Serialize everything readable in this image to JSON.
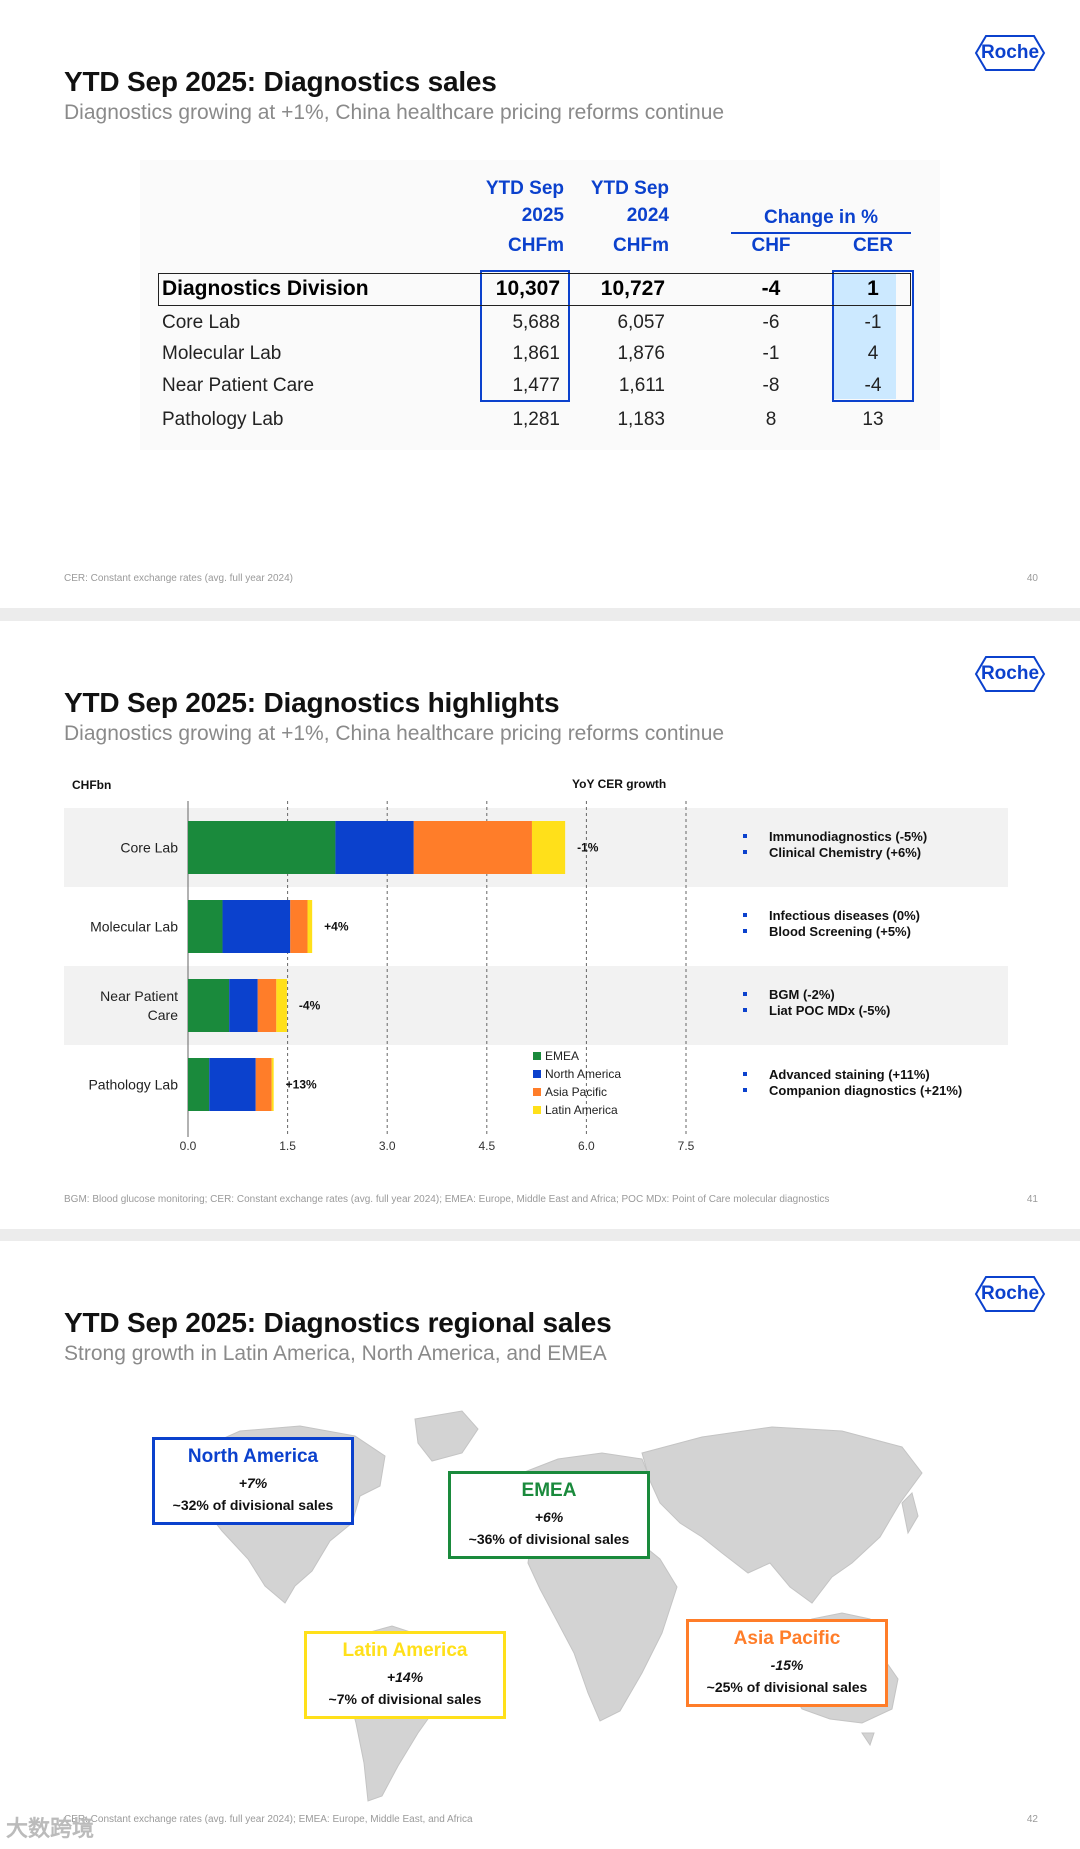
{
  "logo_text": "Roche",
  "slide1": {
    "title": "YTD Sep 2025: Diagnostics sales",
    "subtitle": "Diagnostics growing at +1%, China healthcare pricing reforms continue",
    "headers": {
      "col1_line1": "YTD Sep",
      "col1_line2": "2025",
      "col1_line3": "CHFm",
      "col2_line1": "YTD Sep",
      "col2_line2": "2024",
      "col2_line3": "CHFm",
      "change": "Change in %",
      "chf": "CHF",
      "cer": "CER"
    },
    "rows": [
      {
        "label": "Diagnostics Division",
        "y2025": "10,307",
        "y2024": "10,727",
        "chf": "-4",
        "cer": "1"
      },
      {
        "label": "Core Lab",
        "y2025": "5,688",
        "y2024": "6,057",
        "chf": "-6",
        "cer": "-1"
      },
      {
        "label": "Molecular Lab",
        "y2025": "1,861",
        "y2024": "1,876",
        "chf": "-1",
        "cer": "4"
      },
      {
        "label": "Near Patient Care",
        "y2025": "1,477",
        "y2024": "1,611",
        "chf": "-8",
        "cer": "-4"
      },
      {
        "label": "Pathology Lab",
        "y2025": "1,281",
        "y2024": "1,183",
        "chf": "8",
        "cer": "13"
      }
    ],
    "footnote": "CER: Constant exchange rates (avg. full year 2024)",
    "page": "40"
  },
  "slide2": {
    "title": "YTD Sep 2025: Diagnostics highlights",
    "subtitle": "Diagnostics growing at +1%, China healthcare pricing reforms continue",
    "chf_label": "CHFbn",
    "yoy_label": "YoY CER growth",
    "footnote": "BGM: Blood glucose monitoring; CER: Constant exchange rates (avg. full year 2024); EMEA: Europe, Middle East and Africa; POC MDx: Point of Care molecular diagnostics",
    "page": "41",
    "bullets": [
      [
        "Immunodiagnostics (-5%)",
        "Clinical Chemistry (+6%)"
      ],
      [
        "Infectious diseases (0%)",
        "Blood Screening (+5%)"
      ],
      [
        "BGM (-2%)",
        "Liat POC MDx (-5%)"
      ],
      [
        "Advanced staining (+11%)",
        "Companion diagnostics (+21%)"
      ]
    ]
  },
  "chart_data": {
    "type": "bar",
    "orientation": "horizontal",
    "stacked": true,
    "categories": [
      "Core Lab",
      "Molecular Lab",
      "Near Patient Care",
      "Pathology Lab"
    ],
    "category_lines": [
      [
        "Core Lab"
      ],
      [
        "Molecular Lab"
      ],
      [
        "Near Patient",
        "Care"
      ],
      [
        "Pathology Lab"
      ]
    ],
    "series": [
      {
        "name": "EMEA",
        "color": "#1a8a3c",
        "values": [
          2.22,
          0.52,
          0.62,
          0.32
        ]
      },
      {
        "name": "North America",
        "color": "#0b41cd",
        "values": [
          1.18,
          1.02,
          0.43,
          0.7
        ]
      },
      {
        "name": "Asia Pacific",
        "color": "#ff7d29",
        "values": [
          1.78,
          0.26,
          0.28,
          0.24
        ]
      },
      {
        "name": "Latin America",
        "color": "#ffe01a",
        "values": [
          0.5,
          0.07,
          0.16,
          0.03
        ]
      }
    ],
    "growth_labels": [
      "-1%",
      "+4%",
      "-4%",
      "+13%"
    ],
    "xticks": [
      "0.0",
      "1.5",
      "3.0",
      "4.5",
      "6.0",
      "7.5"
    ],
    "xlim": [
      0,
      7.5
    ],
    "grid": "dashed vertical",
    "legend": "right of bars"
  },
  "slide3": {
    "title": "YTD Sep 2025: Diagnostics regional sales",
    "subtitle": "Strong growth in Latin America, North America, and EMEA",
    "footnote": "CER: Constant exchange rates (avg. full year 2024); EMEA: Europe, Middle East, and Africa",
    "page": "42",
    "regions": [
      {
        "name": "North America",
        "growth": "+7%",
        "share": "~32% of divisional sales",
        "color": "#0b41cd"
      },
      {
        "name": "EMEA",
        "growth": "+6%",
        "share": "~36% of divisional sales",
        "color": "#1a8a3c"
      },
      {
        "name": "Latin America",
        "growth": "+14%",
        "share": "~7% of divisional sales",
        "color": "#ffe01a"
      },
      {
        "name": "Asia Pacific",
        "growth": "-15%",
        "share": "~25% of divisional sales",
        "color": "#ff7d29"
      }
    ],
    "watermark": "大数跨境"
  }
}
